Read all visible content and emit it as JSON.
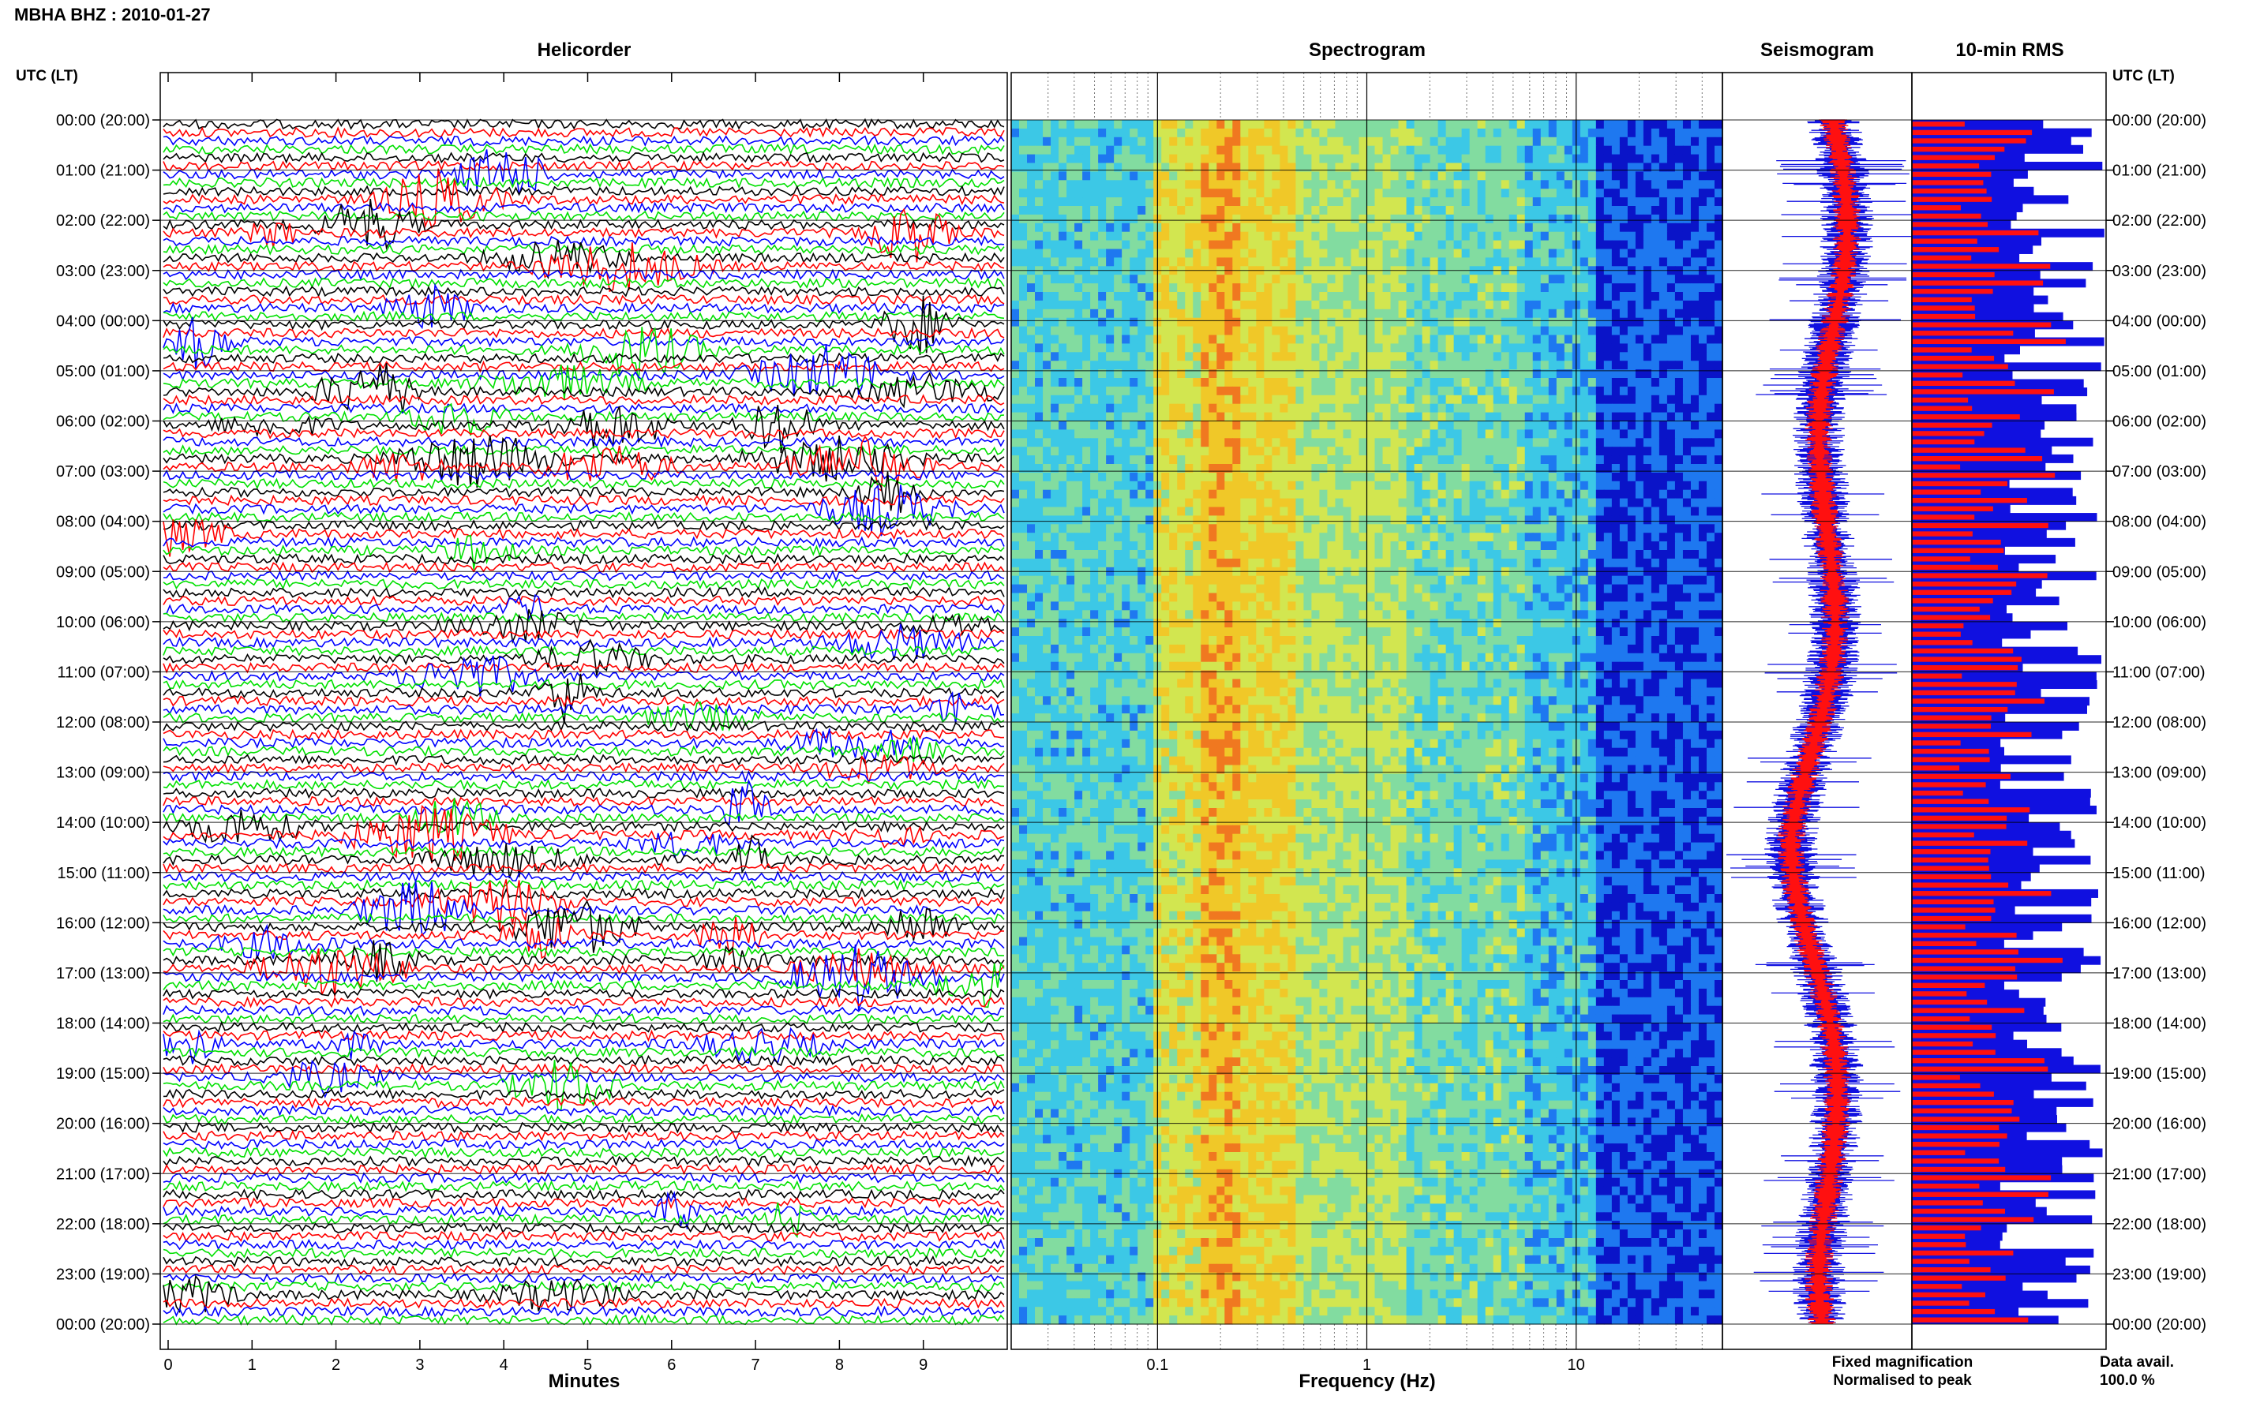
{
  "header": {
    "title": "MBHA BHZ : 2010-01-27"
  },
  "panels": {
    "helicorder": "Helicorder",
    "spectrogram": "Spectrogram",
    "seismogram": "Seismogram",
    "rms": "10-min RMS"
  },
  "axes": {
    "time_label_left": "UTC (LT)",
    "time_label_right": "UTC (LT)",
    "minutes_label": "Minutes",
    "frequency_label": "Frequency (Hz)"
  },
  "legend": {
    "fixed": "Fixed magnification",
    "normalised": "Normalised to peak",
    "fixed_color": "#1010e0",
    "normalised_color": "#ff1010"
  },
  "data_avail": {
    "label": "Data avail.",
    "value": "100.0 %"
  },
  "chart_data": [
    {
      "type": "line",
      "name": "helicorder",
      "title": "Helicorder",
      "xlabel": "Minutes",
      "xlim": [
        0,
        10
      ],
      "x_ticks": [
        "0",
        "1",
        "2",
        "3",
        "4",
        "5",
        "6",
        "7",
        "8",
        "9"
      ],
      "rows_per_hour": 6,
      "trace_colors": [
        "#000000",
        "#ff0000",
        "#0000ff",
        "#00e000"
      ],
      "hour_labels": [
        "00:00 (20:00)",
        "01:00 (21:00)",
        "02:00 (22:00)",
        "03:00 (23:00)",
        "04:00 (00:00)",
        "05:00 (01:00)",
        "06:00 (02:00)",
        "07:00 (03:00)",
        "08:00 (04:00)",
        "09:00 (05:00)",
        "10:00 (06:00)",
        "11:00 (07:00)",
        "12:00 (08:00)",
        "13:00 (09:00)",
        "14:00 (10:00)",
        "15:00 (11:00)",
        "16:00 (12:00)",
        "17:00 (13:00)",
        "18:00 (14:00)",
        "19:00 (15:00)",
        "20:00 (16:00)",
        "21:00 (17:00)",
        "22:00 (18:00)",
        "23:00 (19:00)",
        "00:00 (20:00)"
      ]
    },
    {
      "type": "heatmap",
      "name": "spectrogram",
      "title": "Spectrogram",
      "xlabel": "Frequency (Hz)",
      "x_scale": "log",
      "xlim": [
        0.02,
        50
      ],
      "x_ticks": [
        "0.1",
        "1",
        "10"
      ],
      "colormap": [
        "#0a14c8",
        "#1e78f0",
        "#3cc8e6",
        "#82dca0",
        "#d2e650",
        "#f0c828",
        "#f07820"
      ]
    },
    {
      "type": "line",
      "name": "seismogram",
      "title": "Seismogram",
      "series": [
        {
          "name": "Fixed magnification",
          "color": "#1010e0"
        },
        {
          "name": "Normalised to peak",
          "color": "#ff1010"
        }
      ]
    },
    {
      "type": "bar",
      "name": "rms",
      "title": "10-min RMS",
      "orientation": "horizontal",
      "series": [
        {
          "name": "Fixed magnification",
          "color": "#1010e0"
        },
        {
          "name": "Normalised to peak",
          "color": "#ff1010"
        }
      ],
      "data_availability": "100.0 %"
    }
  ]
}
